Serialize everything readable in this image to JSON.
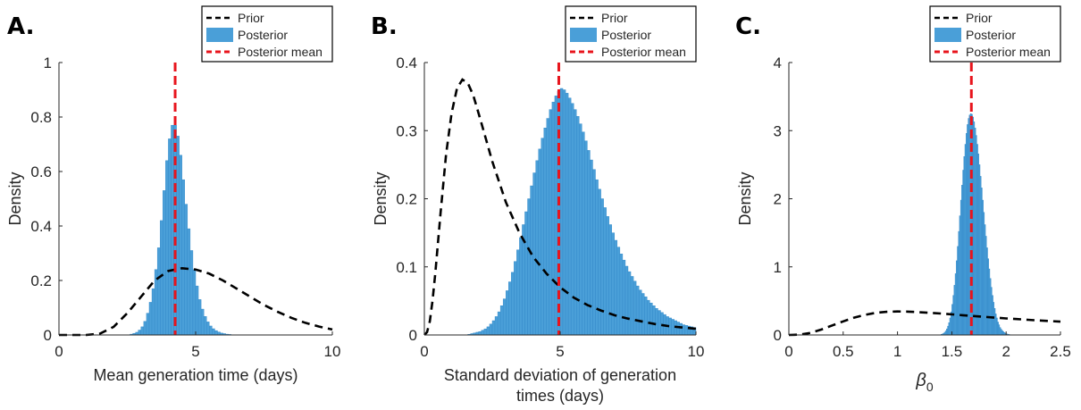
{
  "colors": {
    "posterior_fill": "#4a9fd8",
    "posterior_edge": "#2f86c7",
    "prior_line": "#000000",
    "mean_line": "#e8141c",
    "axis": "#262626"
  },
  "legend_entries": [
    "Prior",
    "Posterior",
    "Posterior mean"
  ],
  "chart_data": [
    {
      "type": "bar",
      "panel_label": "A.",
      "xlabel": "Mean generation time (days)",
      "xlabel_line2": "",
      "ylabel": "Density",
      "xlim": [
        0,
        10
      ],
      "ylim": [
        0,
        1
      ],
      "xticks": [
        0,
        5,
        10
      ],
      "yticks": [
        0,
        0.2,
        0.4,
        0.6,
        0.8,
        1
      ],
      "xtick_labels": [
        "0",
        "5",
        "10"
      ],
      "ytick_labels": [
        "0",
        "0.2",
        "0.4",
        "0.6",
        "0.8",
        "1"
      ],
      "legend_position": "top-right",
      "posterior_mean": 4.25,
      "posterior": {
        "x_start": 2.6,
        "bin_width": 0.1,
        "values": [
          0.003,
          0.006,
          0.01,
          0.018,
          0.03,
          0.05,
          0.08,
          0.12,
          0.17,
          0.24,
          0.32,
          0.42,
          0.53,
          0.64,
          0.72,
          0.77,
          0.77,
          0.73,
          0.66,
          0.57,
          0.48,
          0.39,
          0.31,
          0.24,
          0.18,
          0.13,
          0.095,
          0.068,
          0.048,
          0.033,
          0.023,
          0.016,
          0.011,
          0.007,
          0.005,
          0.003,
          0.002,
          0.001
        ]
      },
      "prior": {
        "x": [
          0,
          0.5,
          1,
          1.5,
          2,
          2.5,
          3,
          3.5,
          4,
          4.5,
          5,
          5.5,
          6,
          6.5,
          7,
          7.5,
          8,
          8.5,
          9,
          9.5,
          10
        ],
        "y": [
          0,
          0,
          0,
          0.005,
          0.03,
          0.08,
          0.14,
          0.2,
          0.235,
          0.245,
          0.24,
          0.225,
          0.2,
          0.17,
          0.14,
          0.11,
          0.085,
          0.063,
          0.045,
          0.031,
          0.02
        ]
      }
    },
    {
      "type": "bar",
      "panel_label": "B.",
      "xlabel": "Standard deviation of generation",
      "xlabel_line2": "times (days)",
      "ylabel": "Density",
      "xlim": [
        0,
        10
      ],
      "ylim": [
        0,
        0.4
      ],
      "xticks": [
        0,
        5,
        10
      ],
      "yticks": [
        0,
        0.1,
        0.2,
        0.3,
        0.4
      ],
      "xtick_labels": [
        "0",
        "5",
        "10"
      ],
      "ytick_labels": [
        "0",
        "0.1",
        "0.2",
        "0.3",
        "0.4"
      ],
      "legend_position": "top-right",
      "posterior_mean": 4.95,
      "posterior": {
        "x_start": 1.6,
        "bin_width": 0.1,
        "values": [
          0.001,
          0.002,
          0.003,
          0.004,
          0.005,
          0.007,
          0.009,
          0.012,
          0.016,
          0.021,
          0.027,
          0.034,
          0.043,
          0.053,
          0.065,
          0.078,
          0.092,
          0.108,
          0.125,
          0.143,
          0.162,
          0.181,
          0.2,
          0.219,
          0.238,
          0.256,
          0.273,
          0.289,
          0.304,
          0.318,
          0.331,
          0.342,
          0.351,
          0.358,
          0.362,
          0.36,
          0.355,
          0.348,
          0.34,
          0.331,
          0.321,
          0.31,
          0.298,
          0.285,
          0.271,
          0.257,
          0.243,
          0.228,
          0.214,
          0.2,
          0.187,
          0.174,
          0.162,
          0.15,
          0.139,
          0.129,
          0.119,
          0.11,
          0.101,
          0.093,
          0.086,
          0.079,
          0.072,
          0.066,
          0.061,
          0.056,
          0.051,
          0.047,
          0.043,
          0.039,
          0.036,
          0.033,
          0.03,
          0.027,
          0.025,
          0.023,
          0.021,
          0.019,
          0.017,
          0.015,
          0.014,
          0.013,
          0.012,
          0.011
        ]
      },
      "prior": {
        "x": [
          0,
          0.1,
          0.2,
          0.3,
          0.4,
          0.5,
          0.6,
          0.8,
          1.0,
          1.2,
          1.4,
          1.6,
          1.8,
          2.0,
          2.2,
          2.5,
          3.0,
          3.5,
          4.0,
          4.5,
          5.0,
          5.5,
          6.0,
          6.5,
          7.0,
          7.5,
          8.0,
          8.5,
          9.0,
          9.5,
          10
        ],
        "y": [
          0,
          0.004,
          0.02,
          0.05,
          0.09,
          0.135,
          0.18,
          0.265,
          0.325,
          0.362,
          0.375,
          0.37,
          0.352,
          0.325,
          0.297,
          0.255,
          0.195,
          0.15,
          0.115,
          0.09,
          0.07,
          0.055,
          0.044,
          0.036,
          0.029,
          0.024,
          0.02,
          0.016,
          0.013,
          0.011,
          0.009
        ]
      }
    },
    {
      "type": "bar",
      "panel_label": "C.",
      "xlabel": "β",
      "xlabel_sub": "0",
      "xlabel_line2": "",
      "ylabel": "Density",
      "xlim": [
        0,
        2.5
      ],
      "ylim": [
        0,
        4
      ],
      "xticks": [
        0,
        0.5,
        1,
        1.5,
        2,
        2.5
      ],
      "yticks": [
        0,
        1,
        2,
        3,
        4
      ],
      "xtick_labels": [
        "0",
        "0.5",
        "1",
        "1.5",
        "2",
        "2.5"
      ],
      "ytick_labels": [
        "0",
        "1",
        "2",
        "3",
        "4"
      ],
      "legend_position": "top-right",
      "posterior_mean": 1.68,
      "posterior": {
        "x_start": 1.4,
        "bin_width": 0.01,
        "values": [
          0.01,
          0.015,
          0.025,
          0.04,
          0.06,
          0.09,
          0.13,
          0.18,
          0.25,
          0.34,
          0.45,
          0.58,
          0.73,
          0.9,
          1.09,
          1.3,
          1.52,
          1.75,
          1.98,
          2.2,
          2.42,
          2.62,
          2.8,
          2.96,
          3.09,
          3.18,
          3.23,
          3.25,
          3.24,
          3.2,
          3.13,
          3.04,
          2.93,
          2.8,
          2.66,
          2.5,
          2.33,
          2.16,
          1.98,
          1.8,
          1.62,
          1.45,
          1.28,
          1.12,
          0.97,
          0.83,
          0.7,
          0.58,
          0.48,
          0.39,
          0.31,
          0.25,
          0.19,
          0.15,
          0.11,
          0.085,
          0.065,
          0.048,
          0.035,
          0.025,
          0.018,
          0.012,
          0.008,
          0.005
        ]
      },
      "prior": {
        "x": [
          0,
          0.1,
          0.2,
          0.3,
          0.4,
          0.5,
          0.6,
          0.7,
          0.8,
          0.9,
          1.0,
          1.1,
          1.2,
          1.3,
          1.4,
          1.5,
          1.6,
          1.7,
          1.8,
          1.9,
          2.0,
          2.1,
          2.2,
          2.3,
          2.4,
          2.5
        ],
        "y": [
          0,
          0.005,
          0.03,
          0.08,
          0.14,
          0.2,
          0.255,
          0.295,
          0.325,
          0.34,
          0.345,
          0.342,
          0.335,
          0.325,
          0.315,
          0.303,
          0.29,
          0.278,
          0.266,
          0.254,
          0.243,
          0.233,
          0.223,
          0.213,
          0.204,
          0.196
        ]
      }
    }
  ]
}
